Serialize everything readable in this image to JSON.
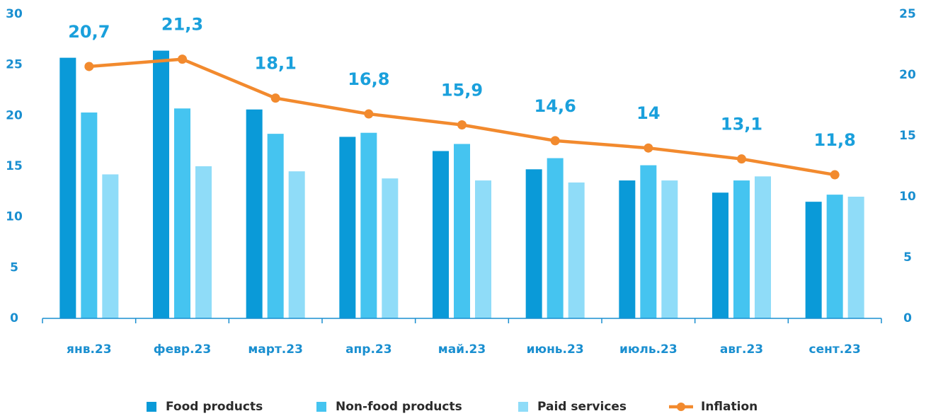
{
  "chart_data": {
    "type": "bar",
    "categories": [
      "янв.23",
      "февр.23",
      "март.23",
      "апр.23",
      "май.23",
      "июнь.23",
      "июль.23",
      "авг.23",
      "сент.23"
    ],
    "series": [
      {
        "name": "Food products",
        "color": "#0a9ad8",
        "values": [
          25.7,
          26.4,
          20.6,
          17.9,
          16.5,
          14.7,
          13.6,
          12.4,
          11.5
        ]
      },
      {
        "name": "Non-food products",
        "color": "#45c4f0",
        "values": [
          20.3,
          20.7,
          18.2,
          18.3,
          17.2,
          15.8,
          15.1,
          13.6,
          12.2
        ]
      },
      {
        "name": "Paid services",
        "color": "#8fdcf8",
        "values": [
          14.2,
          15.0,
          14.5,
          13.8,
          13.6,
          13.4,
          13.6,
          14.0,
          12.0
        ]
      },
      {
        "name": "Inflation",
        "color": "#f28a2e",
        "type": "line",
        "axis": "y2",
        "values": [
          20.7,
          21.3,
          18.1,
          16.8,
          15.9,
          14.6,
          14,
          13.1,
          11.8
        ],
        "value_labels": [
          "20,7",
          "21,3",
          "18,1",
          "16,8",
          "15,9",
          "14,6",
          "14",
          "13,1",
          "11,8"
        ]
      }
    ],
    "ylim": [
      0,
      30
    ],
    "yticks": [
      0,
      5,
      10,
      15,
      20,
      25,
      30
    ],
    "y2lim": [
      0,
      25
    ],
    "y2ticks": [
      0,
      5,
      10,
      15,
      20,
      25
    ],
    "legend": "bottom"
  }
}
